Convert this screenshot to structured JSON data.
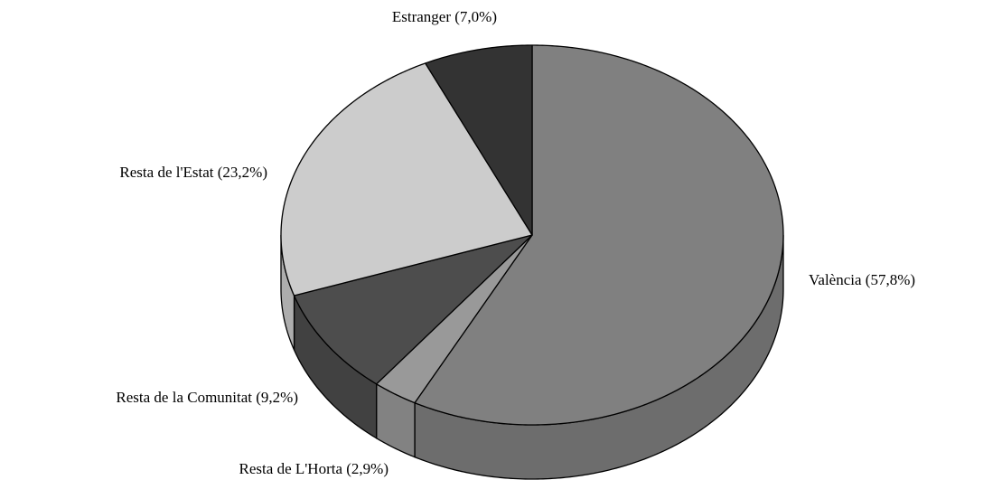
{
  "chart_data": {
    "type": "pie",
    "categories": [
      "València",
      "Resta de L'Horta",
      "Resta de la Comunitat",
      "Resta de l'Estat",
      "Estranger"
    ],
    "values": [
      57.8,
      2.9,
      9.2,
      23.2,
      7.0
    ],
    "value_labels": [
      "(57,8%)",
      "(2,9%)",
      "(9,2%)",
      "(23,2%)",
      "(7,0%)"
    ],
    "colors": [
      "#808080",
      "#999999",
      "#4d4d4d",
      "#cccccc",
      "#333333"
    ]
  }
}
